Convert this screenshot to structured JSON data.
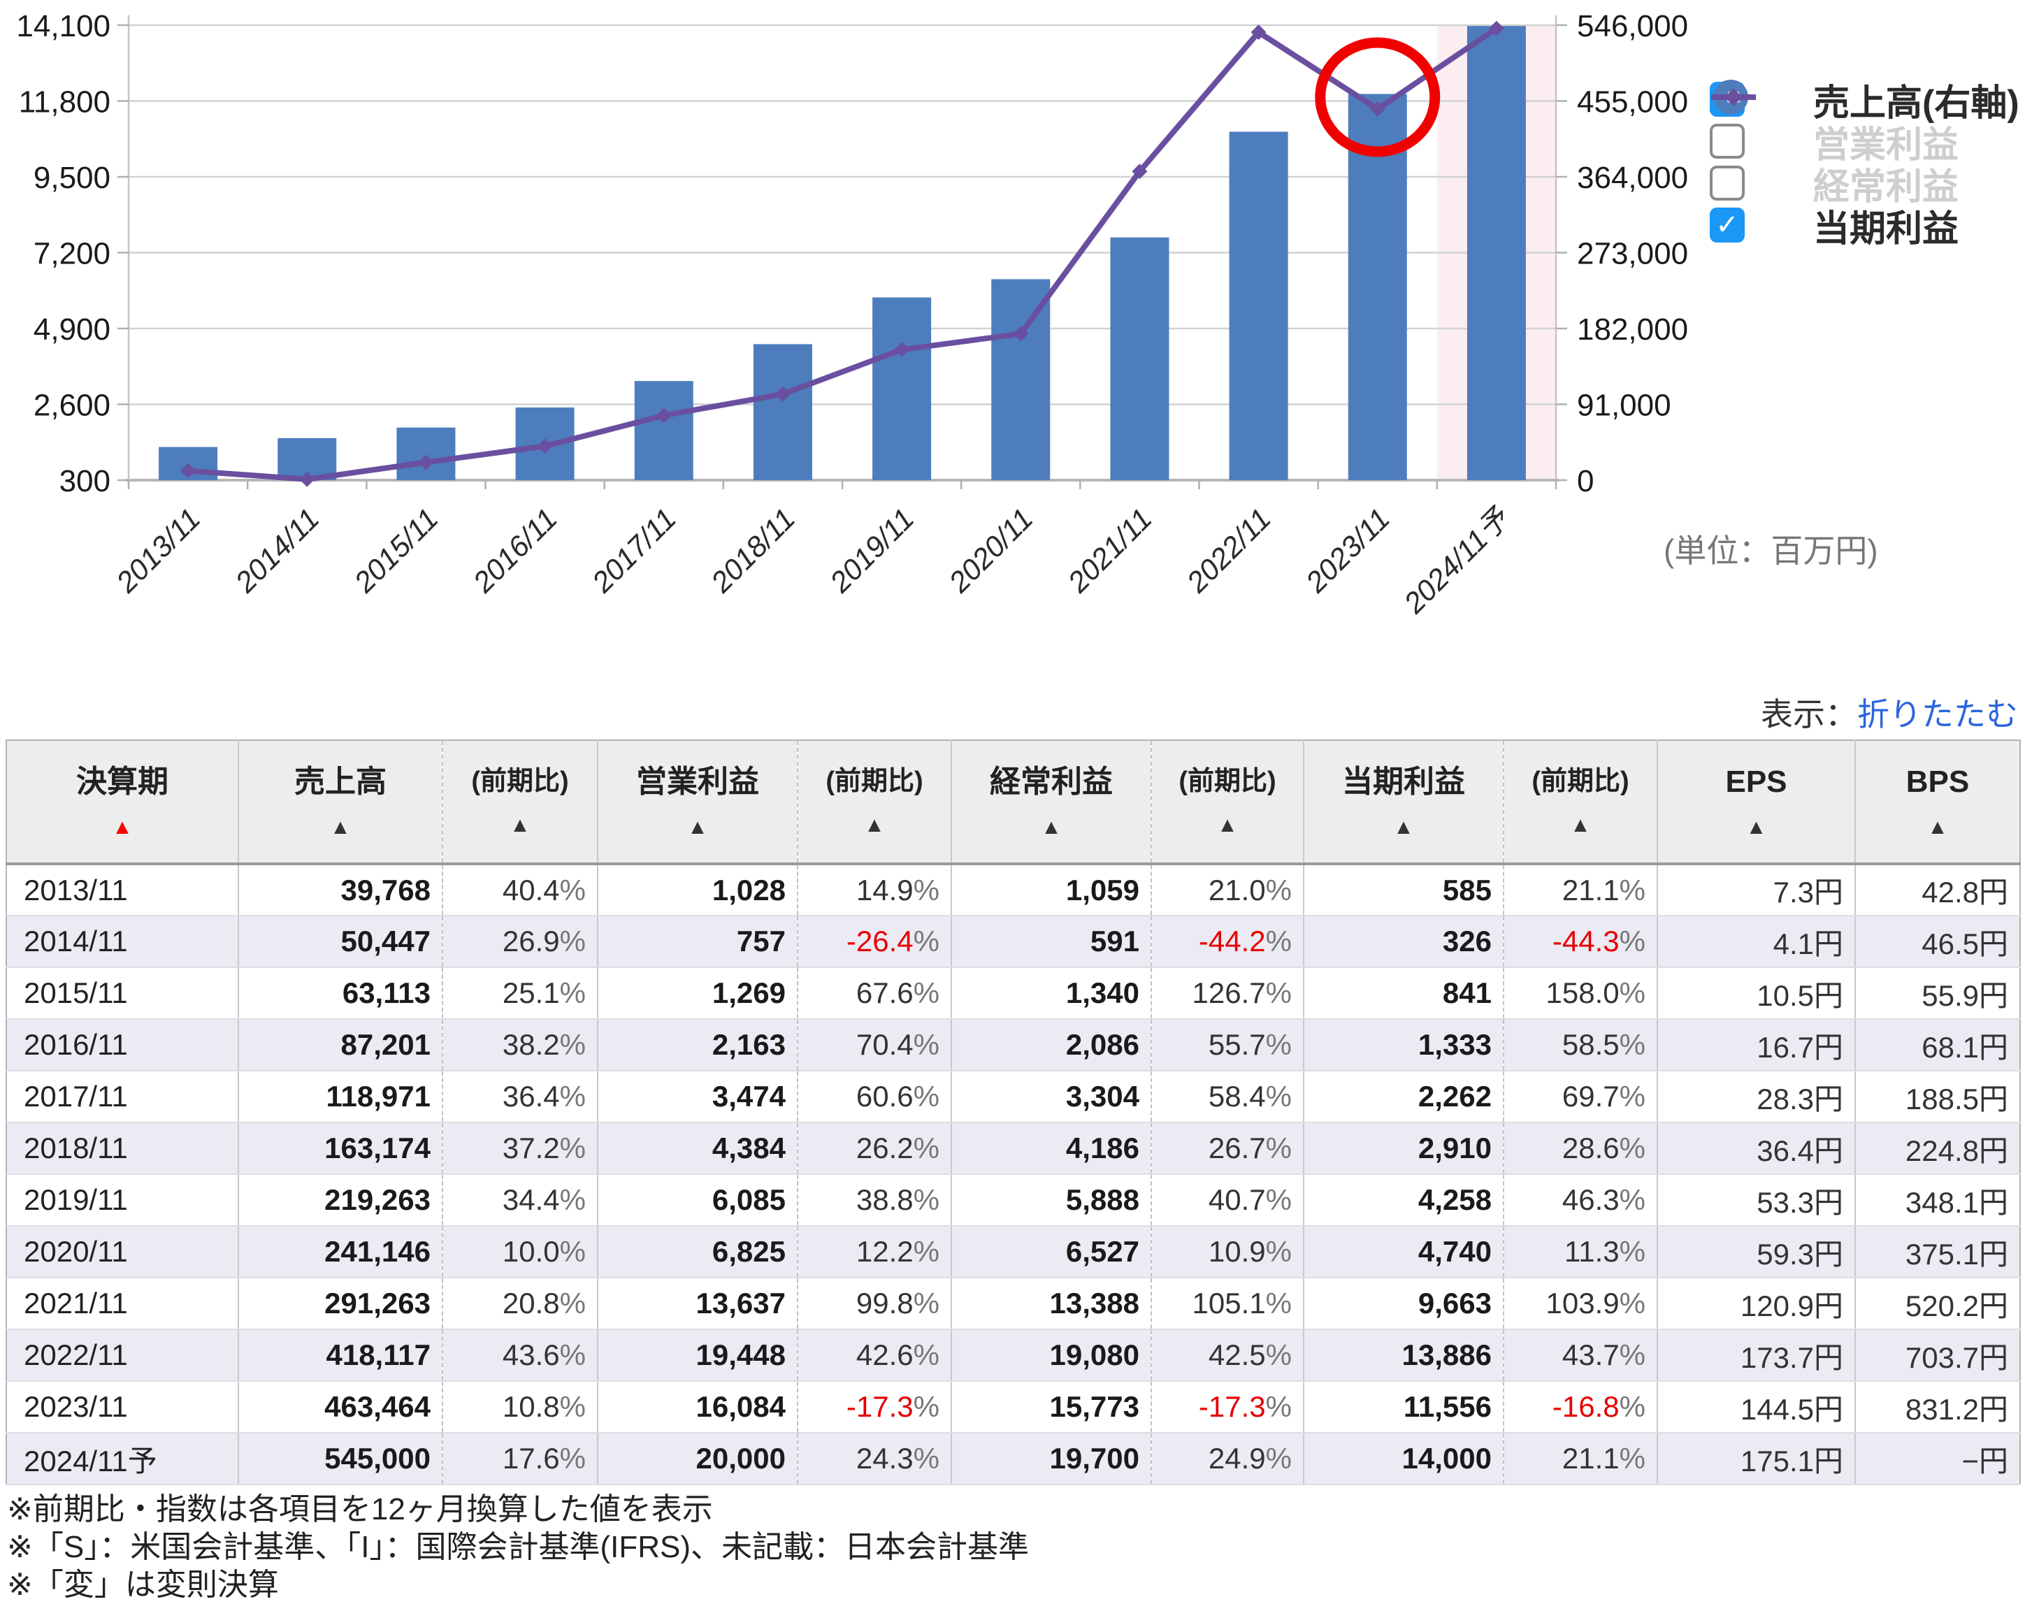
{
  "chart_data": {
    "type": "bar+line",
    "categories": [
      "2013/11",
      "2014/11",
      "2015/11",
      "2016/11",
      "2017/11",
      "2018/11",
      "2019/11",
      "2020/11",
      "2021/11",
      "2022/11",
      "2023/11",
      "2024/11予"
    ],
    "series": [
      {
        "name": "売上高(右軸)",
        "type": "bar",
        "axis": "right",
        "visible": true,
        "values": [
          39768,
          50447,
          63113,
          87201,
          118971,
          163174,
          219263,
          241146,
          291263,
          418117,
          463464,
          545000
        ]
      },
      {
        "name": "営業利益",
        "type": "line",
        "axis": "left",
        "visible": false,
        "values": [
          1028,
          757,
          1269,
          2163,
          3474,
          4384,
          6085,
          6825,
          13637,
          19448,
          16084,
          20000
        ]
      },
      {
        "name": "経常利益",
        "type": "line",
        "axis": "left",
        "visible": false,
        "values": [
          1059,
          591,
          1340,
          2086,
          3304,
          4186,
          5888,
          6527,
          13388,
          19080,
          15773,
          19700
        ]
      },
      {
        "name": "当期利益",
        "type": "line",
        "axis": "left",
        "visible": true,
        "values": [
          585,
          326,
          841,
          1333,
          2262,
          2910,
          4258,
          4740,
          9663,
          13886,
          11556,
          14000
        ]
      }
    ],
    "left_axis": {
      "ticks": [
        "14,100",
        "11,800",
        "9,500",
        "7,200",
        "4,900",
        "2,600",
        "300"
      ],
      "range": [
        300,
        14100
      ]
    },
    "right_axis": {
      "ticks": [
        "546,000",
        "455,000",
        "364,000",
        "273,000",
        "182,000",
        "91,000",
        "0"
      ],
      "range": [
        0,
        546000
      ]
    },
    "forecast_category": "2024/11予",
    "annotation": {
      "shape": "red-circle",
      "target_series": "当期利益",
      "target_category": "2023/11"
    },
    "grid": true,
    "legend_position": "right"
  },
  "legend": [
    {
      "label": "売上高(右軸)",
      "checked": true,
      "marker": "circle",
      "color": "#4d7dbd"
    },
    {
      "label": "営業利益",
      "checked": false,
      "marker": "square",
      "color": "#c9c9c9"
    },
    {
      "label": "経常利益",
      "checked": false,
      "marker": "triangle",
      "color": "#c9c9c9"
    },
    {
      "label": "当期利益",
      "checked": true,
      "marker": "diamond",
      "color": "#6a4fa0"
    }
  ],
  "unit_label": "(単位：百万円)",
  "toggle": {
    "prefix": "表示：",
    "link": "折りたたむ"
  },
  "table": {
    "headers": [
      {
        "label": "決算期",
        "arrow": "#ff0000",
        "small": false
      },
      {
        "label": "売上高",
        "arrow": "#333333",
        "small": false
      },
      {
        "label": "(前期比)",
        "arrow": "#333333",
        "small": true
      },
      {
        "label": "営業利益",
        "arrow": "#333333",
        "small": false
      },
      {
        "label": "(前期比)",
        "arrow": "#333333",
        "small": true
      },
      {
        "label": "経常利益",
        "arrow": "#333333",
        "small": false
      },
      {
        "label": "(前期比)",
        "arrow": "#333333",
        "small": true
      },
      {
        "label": "当期利益",
        "arrow": "#333333",
        "small": false
      },
      {
        "label": "(前期比)",
        "arrow": "#333333",
        "small": true
      },
      {
        "label": "EPS",
        "arrow": "#333333",
        "small": false
      },
      {
        "label": "BPS",
        "arrow": "#333333",
        "small": false
      }
    ],
    "rows": [
      [
        "2013/11",
        "39,768",
        "40.4%",
        "1,028",
        "14.9%",
        "1,059",
        "21.0%",
        "585",
        "21.1%",
        "7.3円",
        "42.8円"
      ],
      [
        "2014/11",
        "50,447",
        "26.9%",
        "757",
        "-26.4%",
        "591",
        "-44.2%",
        "326",
        "-44.3%",
        "4.1円",
        "46.5円"
      ],
      [
        "2015/11",
        "63,113",
        "25.1%",
        "1,269",
        "67.6%",
        "1,340",
        "126.7%",
        "841",
        "158.0%",
        "10.5円",
        "55.9円"
      ],
      [
        "2016/11",
        "87,201",
        "38.2%",
        "2,163",
        "70.4%",
        "2,086",
        "55.7%",
        "1,333",
        "58.5%",
        "16.7円",
        "68.1円"
      ],
      [
        "2017/11",
        "118,971",
        "36.4%",
        "3,474",
        "60.6%",
        "3,304",
        "58.4%",
        "2,262",
        "69.7%",
        "28.3円",
        "188.5円"
      ],
      [
        "2018/11",
        "163,174",
        "37.2%",
        "4,384",
        "26.2%",
        "4,186",
        "26.7%",
        "2,910",
        "28.6%",
        "36.4円",
        "224.8円"
      ],
      [
        "2019/11",
        "219,263",
        "34.4%",
        "6,085",
        "38.8%",
        "5,888",
        "40.7%",
        "4,258",
        "46.3%",
        "53.3円",
        "348.1円"
      ],
      [
        "2020/11",
        "241,146",
        "10.0%",
        "6,825",
        "12.2%",
        "6,527",
        "10.9%",
        "4,740",
        "11.3%",
        "59.3円",
        "375.1円"
      ],
      [
        "2021/11",
        "291,263",
        "20.8%",
        "13,637",
        "99.8%",
        "13,388",
        "105.1%",
        "9,663",
        "103.9%",
        "120.9円",
        "520.2円"
      ],
      [
        "2022/11",
        "418,117",
        "43.6%",
        "19,448",
        "42.6%",
        "19,080",
        "42.5%",
        "13,886",
        "43.7%",
        "173.7円",
        "703.7円"
      ],
      [
        "2023/11",
        "463,464",
        "10.8%",
        "16,084",
        "-17.3%",
        "15,773",
        "-17.3%",
        "11,556",
        "-16.8%",
        "144.5円",
        "831.2円"
      ],
      [
        "2024/11予",
        "545,000",
        "17.6%",
        "20,000",
        "24.3%",
        "19,700",
        "24.9%",
        "14,000",
        "21.1%",
        "175.1円",
        "−円"
      ]
    ]
  },
  "footnotes": [
    "※前期比・指数は各項目を12ヶ月換算した値を表示",
    "※「S」：米国会計基準、「I」：国際会計基準(IFRS)、未記載：日本会計基準",
    "※「変」は変則決算"
  ],
  "colors": {
    "bar": "#4d7dbd",
    "line": "#6a4fa0",
    "gray_series": "#c9c9c9",
    "forecast_band": "#fceef0",
    "grid": "#d2d2d2",
    "axis": "#b8b8b8",
    "checkbox": "#1b97f5",
    "link": "#2b65dd",
    "negative": "#e60000",
    "annotation": "#f10000"
  }
}
